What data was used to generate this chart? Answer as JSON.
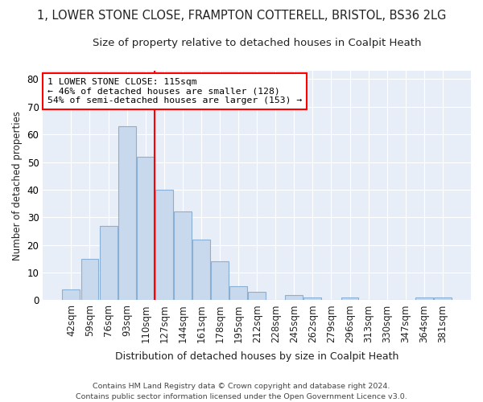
{
  "title1": "1, LOWER STONE CLOSE, FRAMPTON COTTERELL, BRISTOL, BS36 2LG",
  "title2": "Size of property relative to detached houses in Coalpit Heath",
  "xlabel": "Distribution of detached houses by size in Coalpit Heath",
  "ylabel": "Number of detached properties",
  "categories": [
    "42sqm",
    "59sqm",
    "76sqm",
    "93sqm",
    "110sqm",
    "127sqm",
    "144sqm",
    "161sqm",
    "178sqm",
    "195sqm",
    "212sqm",
    "228sqm",
    "245sqm",
    "262sqm",
    "279sqm",
    "296sqm",
    "313sqm",
    "330sqm",
    "347sqm",
    "364sqm",
    "381sqm"
  ],
  "values": [
    4,
    15,
    27,
    63,
    52,
    40,
    32,
    22,
    14,
    5,
    3,
    0,
    2,
    1,
    0,
    1,
    0,
    0,
    0,
    1,
    1
  ],
  "bar_color": "#c9d9ed",
  "bar_edge_color": "#8aafd4",
  "vline_x": 4.5,
  "vline_color": "red",
  "annotation_text": "1 LOWER STONE CLOSE: 115sqm\n← 46% of detached houses are smaller (128)\n54% of semi-detached houses are larger (153) →",
  "annotation_box_color": "white",
  "annotation_box_edge_color": "red",
  "ylim": [
    0,
    83
  ],
  "yticks": [
    0,
    10,
    20,
    30,
    40,
    50,
    60,
    70,
    80
  ],
  "footer": "Contains HM Land Registry data © Crown copyright and database right 2024.\nContains public sector information licensed under the Open Government Licence v3.0.",
  "background_color": "#ffffff",
  "plot_background_color": "#e8eef7",
  "grid_color": "#ffffff",
  "title1_fontsize": 10.5,
  "title2_fontsize": 9.5
}
